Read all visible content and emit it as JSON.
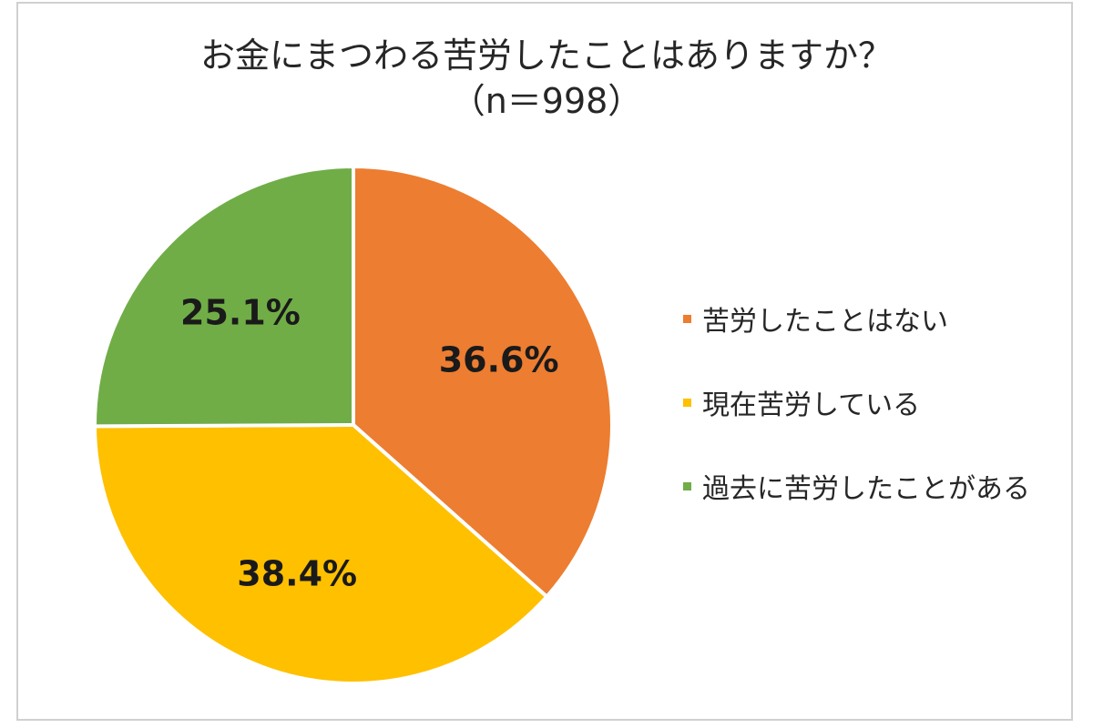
{
  "chart_data": {
    "type": "pie",
    "title": "お金にまつわる苦労したことはありますか？",
    "subtitle": "（n＝998）",
    "slices": [
      {
        "label": "苦労したことはない",
        "value": 36.6,
        "display": "36.6%",
        "color": "#ED7D31"
      },
      {
        "label": "現在苦労している",
        "value": 38.4,
        "display": "38.4%",
        "color": "#FFC000"
      },
      {
        "label": "過去に苦労したことがある",
        "value": 25.1,
        "display": "25.1%",
        "color": "#70AD47"
      }
    ],
    "start_angle_deg": 0,
    "direction": "clockwise",
    "legend_position": "right"
  }
}
